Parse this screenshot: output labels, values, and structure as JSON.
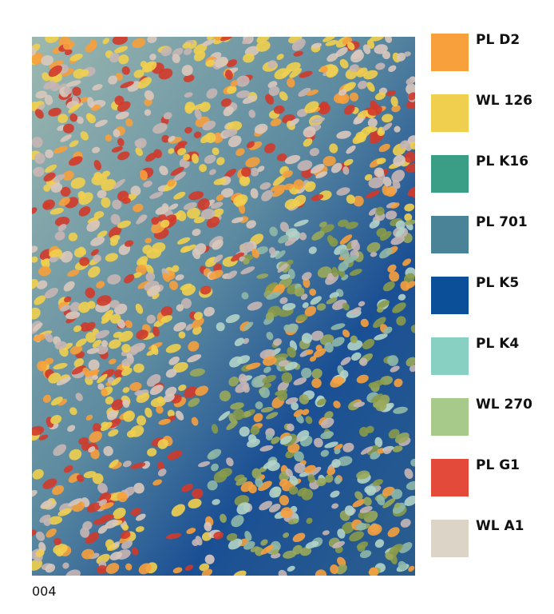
{
  "swatches": [
    {
      "name": "PL D2",
      "color": "#f7a03c"
    },
    {
      "name": "WL 126",
      "color": "#f1cf4e"
    },
    {
      "name": "PL K16",
      "color": "#3a9e86"
    },
    {
      "name": "PL 701",
      "color": "#4a8298"
    },
    {
      "name": "PL K5",
      "color": "#0a4f98"
    },
    {
      "name": "PL K4",
      "color": "#88d0c1"
    },
    {
      "name": "WL 270",
      "color": "#a7c98a"
    },
    {
      "name": "PL G1",
      "color": "#e34a39"
    },
    {
      "name": "WL A1",
      "color": "#ddd4c8"
    }
  ],
  "caption": "004"
}
